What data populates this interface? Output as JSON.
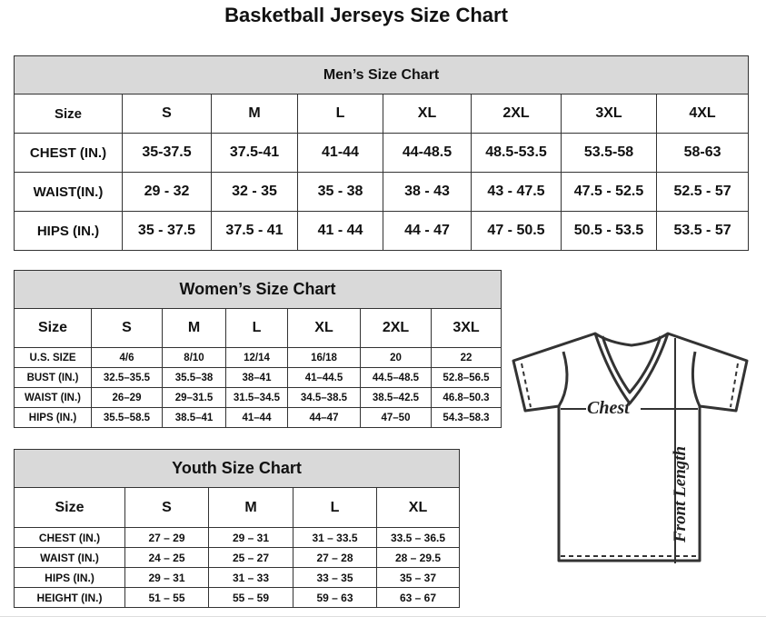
{
  "title": "Basketball Jerseys Size Chart",
  "men": {
    "heading": "Men’s Size Chart",
    "rows": [
      [
        "Size",
        "S",
        "M",
        "L",
        "XL",
        "2XL",
        "3XL",
        "4XL"
      ],
      [
        "CHEST (IN.)",
        "35-37.5",
        "37.5-41",
        "41-44",
        "44-48.5",
        "48.5-53.5",
        "53.5-58",
        "58-63"
      ],
      [
        "WAIST(IN.)",
        "29 - 32",
        "32 - 35",
        "35 - 38",
        "38 - 43",
        "43 - 47.5",
        "47.5 - 52.5",
        "52.5 - 57"
      ],
      [
        "HIPS (IN.)",
        "35 - 37.5",
        "37.5 - 41",
        "41 - 44",
        "44 - 47",
        "47 - 50.5",
        "50.5 - 53.5",
        "53.5 - 57"
      ]
    ]
  },
  "women": {
    "heading": "Women’s Size Chart",
    "rows": [
      [
        "Size",
        "S",
        "M",
        "L",
        "XL",
        "2XL",
        "3XL"
      ],
      [
        "U.S.  SIZE",
        "4/6",
        "8/10",
        "12/14",
        "16/18",
        "20",
        "22"
      ],
      [
        "BUST  (IN.)",
        "32.5–35.5",
        "35.5–38",
        "38–41",
        "41–44.5",
        "44.5–48.5",
        "52.8–56.5"
      ],
      [
        "WAIST  (IN.)",
        "26–29",
        "29–31.5",
        "31.5–34.5",
        "34.5–38.5",
        "38.5–42.5",
        "46.8–50.3"
      ],
      [
        "HIPS  (IN.)",
        "35.5–58.5",
        "38.5–41",
        "41–44",
        "44–47",
        "47–50",
        "54.3–58.3"
      ]
    ]
  },
  "youth": {
    "heading": "Youth Size Chart",
    "rows": [
      [
        "Size",
        "S",
        "M",
        "L",
        "XL"
      ],
      [
        "CHEST  (IN.)",
        "27  –  29",
        "29  –  31",
        "31  –  33.5",
        "33.5  –  36.5"
      ],
      [
        "WAIST  (IN.)",
        "24  –  25",
        "25  –  27",
        "27  –  28",
        "28  –  29.5"
      ],
      [
        "HIPS  (IN.)",
        "29  –  31",
        "31  –  33",
        "33  –  35",
        "35  –  37"
      ],
      [
        "HEIGHT  (IN.)",
        "51  –  55",
        "55  –  59",
        "59  –  63",
        "63  –  67"
      ]
    ]
  },
  "diagram": {
    "chest_label": "Chest",
    "length_label": "Front Length"
  },
  "colors": {
    "header_bg": "#d9d9d9",
    "border": "#333333"
  }
}
